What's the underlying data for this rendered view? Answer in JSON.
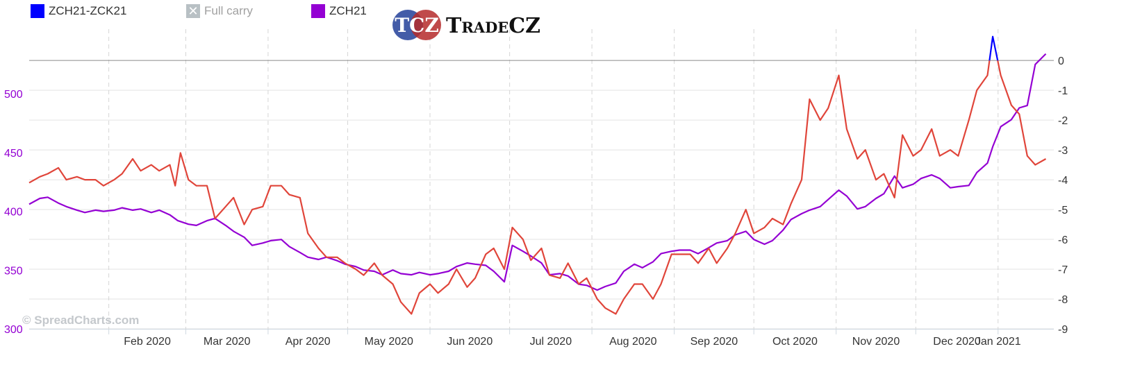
{
  "legend": {
    "items": [
      {
        "label": "ZCH21-ZCK21",
        "color": "#0000ff"
      },
      {
        "label": "Full carry",
        "color": "#b8c0c4"
      },
      {
        "label": "ZCH21",
        "color": "#9400d3"
      }
    ]
  },
  "logo": {
    "mark": "TCZ",
    "name": "TradeCZ"
  },
  "watermark": "© SpreadCharts.com",
  "chart_data": {
    "type": "line",
    "x_axis": {
      "ticks": [
        "Feb 2020",
        "Mar 2020",
        "Apr 2020",
        "May 2020",
        "Jun 2020",
        "Jul 2020",
        "Aug 2020",
        "Sep 2020",
        "Oct 2020",
        "Nov 2020",
        "Dec 2020",
        "Jan 2021"
      ],
      "range": [
        "2020-01-02",
        "2021-01-22"
      ]
    },
    "y_left": {
      "ticks": [
        300,
        350,
        400,
        450,
        500
      ],
      "range": [
        300,
        555
      ],
      "color": "#9400d3"
    },
    "y_right": {
      "ticks": [
        0,
        -1,
        -2,
        -3,
        -4,
        -5,
        -6,
        -7,
        -8,
        -9
      ],
      "range": [
        -9,
        1.05
      ],
      "color": "#333333"
    },
    "zero_line": 0,
    "series": [
      {
        "name": "ZCH21-ZCK21",
        "axis": "right",
        "color_above_zero": "#0000ff",
        "color": "#e0453a",
        "points": [
          [
            "2020-01-02",
            -4.1
          ],
          [
            "2020-01-06",
            -3.9
          ],
          [
            "2020-01-09",
            -3.8
          ],
          [
            "2020-01-13",
            -3.6
          ],
          [
            "2020-01-16",
            -4.0
          ],
          [
            "2020-01-20",
            -3.9
          ],
          [
            "2020-01-23",
            -4.0
          ],
          [
            "2020-01-27",
            -4.0
          ],
          [
            "2020-01-30",
            -4.2
          ],
          [
            "2020-02-03",
            -4.0
          ],
          [
            "2020-02-06",
            -3.8
          ],
          [
            "2020-02-10",
            -3.3
          ],
          [
            "2020-02-13",
            -3.7
          ],
          [
            "2020-02-17",
            -3.5
          ],
          [
            "2020-02-20",
            -3.7
          ],
          [
            "2020-02-24",
            -3.5
          ],
          [
            "2020-02-26",
            -4.2
          ],
          [
            "2020-02-28",
            -3.1
          ],
          [
            "2020-03-02",
            -4.0
          ],
          [
            "2020-03-05",
            -4.2
          ],
          [
            "2020-03-09",
            -4.2
          ],
          [
            "2020-03-12",
            -5.3
          ],
          [
            "2020-03-16",
            -4.9
          ],
          [
            "2020-03-19",
            -4.6
          ],
          [
            "2020-03-23",
            -5.5
          ],
          [
            "2020-03-26",
            -5.0
          ],
          [
            "2020-03-30",
            -4.9
          ],
          [
            "2020-04-02",
            -4.2
          ],
          [
            "2020-04-06",
            -4.2
          ],
          [
            "2020-04-09",
            -4.5
          ],
          [
            "2020-04-13",
            -4.6
          ],
          [
            "2020-04-16",
            -5.8
          ],
          [
            "2020-04-20",
            -6.3
          ],
          [
            "2020-04-23",
            -6.6
          ],
          [
            "2020-04-27",
            -6.6
          ],
          [
            "2020-04-30",
            -6.8
          ],
          [
            "2020-05-04",
            -7.0
          ],
          [
            "2020-05-07",
            -7.2
          ],
          [
            "2020-05-11",
            -6.8
          ],
          [
            "2020-05-14",
            -7.2
          ],
          [
            "2020-05-18",
            -7.5
          ],
          [
            "2020-05-21",
            -8.1
          ],
          [
            "2020-05-25",
            -8.5
          ],
          [
            "2020-05-28",
            -7.8
          ],
          [
            "2020-06-01",
            -7.5
          ],
          [
            "2020-06-04",
            -7.8
          ],
          [
            "2020-06-08",
            -7.5
          ],
          [
            "2020-06-11",
            -7.0
          ],
          [
            "2020-06-15",
            -7.6
          ],
          [
            "2020-06-18",
            -7.3
          ],
          [
            "2020-06-22",
            -6.5
          ],
          [
            "2020-06-25",
            -6.3
          ],
          [
            "2020-06-29",
            -7.0
          ],
          [
            "2020-07-02",
            -5.6
          ],
          [
            "2020-07-06",
            -6.0
          ],
          [
            "2020-07-09",
            -6.7
          ],
          [
            "2020-07-13",
            -6.3
          ],
          [
            "2020-07-16",
            -7.2
          ],
          [
            "2020-07-20",
            -7.3
          ],
          [
            "2020-07-23",
            -6.8
          ],
          [
            "2020-07-27",
            -7.5
          ],
          [
            "2020-07-30",
            -7.3
          ],
          [
            "2020-08-03",
            -8.0
          ],
          [
            "2020-08-06",
            -8.3
          ],
          [
            "2020-08-10",
            -8.5
          ],
          [
            "2020-08-13",
            -8.0
          ],
          [
            "2020-08-17",
            -7.5
          ],
          [
            "2020-08-20",
            -7.5
          ],
          [
            "2020-08-24",
            -8.0
          ],
          [
            "2020-08-27",
            -7.5
          ],
          [
            "2020-08-31",
            -6.5
          ],
          [
            "2020-09-03",
            -6.5
          ],
          [
            "2020-09-07",
            -6.5
          ],
          [
            "2020-09-10",
            -6.8
          ],
          [
            "2020-09-14",
            -6.3
          ],
          [
            "2020-09-17",
            -6.8
          ],
          [
            "2020-09-21",
            -6.3
          ],
          [
            "2020-09-24",
            -5.8
          ],
          [
            "2020-09-28",
            -5.0
          ],
          [
            "2020-10-01",
            -5.8
          ],
          [
            "2020-10-05",
            -5.6
          ],
          [
            "2020-10-08",
            -5.3
          ],
          [
            "2020-10-12",
            -5.5
          ],
          [
            "2020-10-15",
            -4.8
          ],
          [
            "2020-10-19",
            -4.0
          ],
          [
            "2020-10-22",
            -1.3
          ],
          [
            "2020-10-26",
            -2.0
          ],
          [
            "2020-10-29",
            -1.6
          ],
          [
            "2020-11-02",
            -0.5
          ],
          [
            "2020-11-05",
            -2.3
          ],
          [
            "2020-11-09",
            -3.3
          ],
          [
            "2020-11-12",
            -3.0
          ],
          [
            "2020-11-16",
            -4.0
          ],
          [
            "2020-11-19",
            -3.8
          ],
          [
            "2020-11-23",
            -4.6
          ],
          [
            "2020-11-26",
            -2.5
          ],
          [
            "2020-11-30",
            -3.2
          ],
          [
            "2020-12-03",
            -3.0
          ],
          [
            "2020-12-07",
            -2.3
          ],
          [
            "2020-12-10",
            -3.2
          ],
          [
            "2020-12-14",
            -3.0
          ],
          [
            "2020-12-17",
            -3.2
          ],
          [
            "2020-12-21",
            -2.0
          ],
          [
            "2020-12-24",
            -1.0
          ],
          [
            "2020-12-28",
            -0.5
          ],
          [
            "2020-12-30",
            0.8
          ],
          [
            "2021-01-02",
            -0.5
          ],
          [
            "2021-01-06",
            -1.5
          ],
          [
            "2021-01-09",
            -1.8
          ],
          [
            "2021-01-12",
            -3.2
          ],
          [
            "2021-01-15",
            -3.5
          ],
          [
            "2021-01-19",
            -3.3
          ]
        ]
      },
      {
        "name": "ZCH21",
        "axis": "left",
        "color": "#9400d3",
        "points": [
          [
            "2020-01-02",
            406
          ],
          [
            "2020-01-06",
            411
          ],
          [
            "2020-01-09",
            412
          ],
          [
            "2020-01-13",
            407
          ],
          [
            "2020-01-16",
            404
          ],
          [
            "2020-01-20",
            401
          ],
          [
            "2020-01-23",
            399
          ],
          [
            "2020-01-27",
            401
          ],
          [
            "2020-01-30",
            400
          ],
          [
            "2020-02-03",
            401
          ],
          [
            "2020-02-06",
            403
          ],
          [
            "2020-02-10",
            401
          ],
          [
            "2020-02-13",
            402
          ],
          [
            "2020-02-17",
            399
          ],
          [
            "2020-02-20",
            401
          ],
          [
            "2020-02-24",
            397
          ],
          [
            "2020-02-27",
            392
          ],
          [
            "2020-03-02",
            389
          ],
          [
            "2020-03-05",
            388
          ],
          [
            "2020-03-09",
            392
          ],
          [
            "2020-03-12",
            394
          ],
          [
            "2020-03-16",
            388
          ],
          [
            "2020-03-19",
            383
          ],
          [
            "2020-03-23",
            378
          ],
          [
            "2020-03-26",
            371
          ],
          [
            "2020-03-30",
            373
          ],
          [
            "2020-04-02",
            375
          ],
          [
            "2020-04-06",
            376
          ],
          [
            "2020-04-09",
            370
          ],
          [
            "2020-04-13",
            365
          ],
          [
            "2020-04-16",
            361
          ],
          [
            "2020-04-20",
            359
          ],
          [
            "2020-04-23",
            361
          ],
          [
            "2020-04-27",
            358
          ],
          [
            "2020-04-30",
            355
          ],
          [
            "2020-05-04",
            353
          ],
          [
            "2020-05-07",
            350
          ],
          [
            "2020-05-11",
            349
          ],
          [
            "2020-05-14",
            346
          ],
          [
            "2020-05-18",
            350
          ],
          [
            "2020-05-21",
            347
          ],
          [
            "2020-05-25",
            346
          ],
          [
            "2020-05-28",
            348
          ],
          [
            "2020-06-01",
            346
          ],
          [
            "2020-06-04",
            347
          ],
          [
            "2020-06-08",
            349
          ],
          [
            "2020-06-11",
            353
          ],
          [
            "2020-06-15",
            356
          ],
          [
            "2020-06-18",
            355
          ],
          [
            "2020-06-22",
            354
          ],
          [
            "2020-06-25",
            349
          ],
          [
            "2020-06-29",
            340
          ],
          [
            "2020-07-02",
            371
          ],
          [
            "2020-07-06",
            366
          ],
          [
            "2020-07-09",
            362
          ],
          [
            "2020-07-13",
            356
          ],
          [
            "2020-07-16",
            346
          ],
          [
            "2020-07-20",
            347
          ],
          [
            "2020-07-23",
            345
          ],
          [
            "2020-07-27",
            338
          ],
          [
            "2020-07-30",
            337
          ],
          [
            "2020-08-03",
            333
          ],
          [
            "2020-08-06",
            336
          ],
          [
            "2020-08-10",
            339
          ],
          [
            "2020-08-13",
            349
          ],
          [
            "2020-08-17",
            355
          ],
          [
            "2020-08-20",
            352
          ],
          [
            "2020-08-24",
            357
          ],
          [
            "2020-08-27",
            364
          ],
          [
            "2020-08-31",
            366
          ],
          [
            "2020-09-03",
            367
          ],
          [
            "2020-09-07",
            367
          ],
          [
            "2020-09-10",
            364
          ],
          [
            "2020-09-14",
            369
          ],
          [
            "2020-09-17",
            373
          ],
          [
            "2020-09-21",
            375
          ],
          [
            "2020-09-24",
            380
          ],
          [
            "2020-09-28",
            383
          ],
          [
            "2020-10-01",
            376
          ],
          [
            "2020-10-05",
            372
          ],
          [
            "2020-10-08",
            375
          ],
          [
            "2020-10-12",
            384
          ],
          [
            "2020-10-15",
            393
          ],
          [
            "2020-10-19",
            398
          ],
          [
            "2020-10-22",
            401
          ],
          [
            "2020-10-26",
            404
          ],
          [
            "2020-10-29",
            410
          ],
          [
            "2020-11-02",
            418
          ],
          [
            "2020-11-05",
            413
          ],
          [
            "2020-11-09",
            402
          ],
          [
            "2020-11-12",
            404
          ],
          [
            "2020-11-16",
            411
          ],
          [
            "2020-11-19",
            415
          ],
          [
            "2020-11-23",
            430
          ],
          [
            "2020-11-26",
            420
          ],
          [
            "2020-11-30",
            423
          ],
          [
            "2020-12-03",
            428
          ],
          [
            "2020-12-07",
            431
          ],
          [
            "2020-12-10",
            428
          ],
          [
            "2020-12-14",
            420
          ],
          [
            "2020-12-17",
            421
          ],
          [
            "2020-12-21",
            422
          ],
          [
            "2020-12-24",
            433
          ],
          [
            "2020-12-28",
            441
          ],
          [
            "2020-12-30",
            455
          ],
          [
            "2021-01-02",
            472
          ],
          [
            "2021-01-06",
            478
          ],
          [
            "2021-01-09",
            488
          ],
          [
            "2021-01-12",
            490
          ],
          [
            "2021-01-15",
            525
          ],
          [
            "2021-01-19",
            534
          ]
        ]
      }
    ]
  }
}
